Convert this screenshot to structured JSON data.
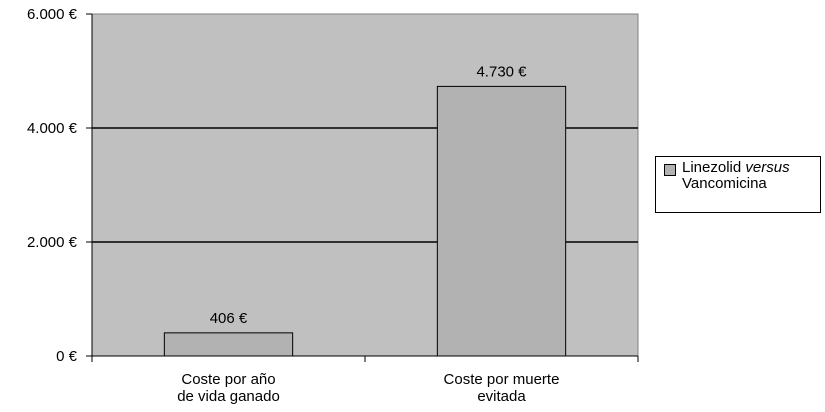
{
  "chart_data": {
    "type": "bar",
    "categories": [
      [
        "Coste por año",
        "de vida ganado"
      ],
      [
        "Coste por muerte",
        "evitada"
      ]
    ],
    "series": [
      {
        "name_parts": [
          "Linezolid",
          "versus",
          "Vancomicina"
        ],
        "values": [
          406,
          4730
        ],
        "data_labels": [
          "406 €",
          "4.730 €"
        ]
      }
    ],
    "ylim": [
      0,
      6000
    ],
    "yticks": [
      0,
      2000,
      4000,
      6000
    ],
    "ytick_labels": [
      "0 €",
      "2.000 €",
      "4.000 €",
      "6.000 €"
    ],
    "grid": true,
    "legend": "right"
  },
  "colors": {
    "plot_bg": "#c0c0c0",
    "bar_fill": "#b2b2b2",
    "gridline": "#000000"
  }
}
